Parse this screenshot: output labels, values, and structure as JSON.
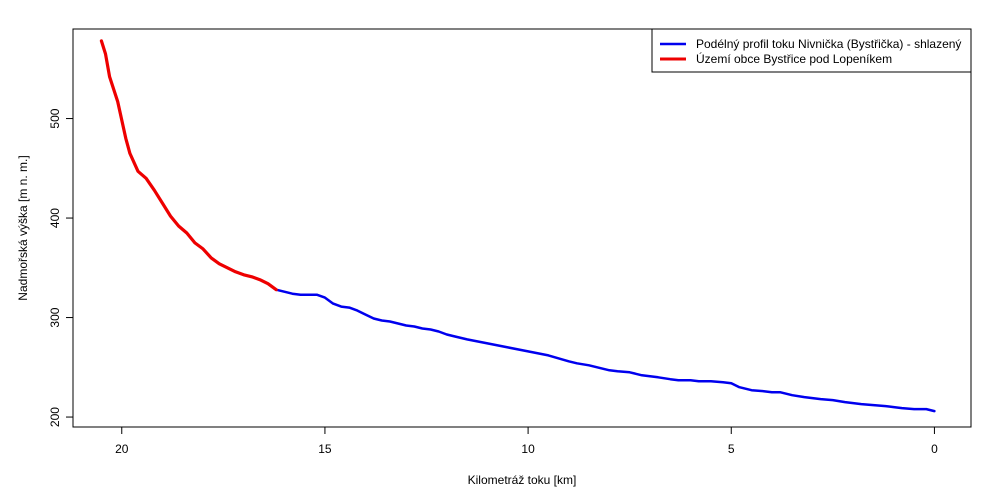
{
  "chart_data": {
    "type": "line",
    "xlabel": "Kilometráž toku [km]",
    "ylabel": "Nadmořská výška [m n. m.]",
    "xlim": [
      21.2,
      -0.9
    ],
    "ylim": [
      190,
      590
    ],
    "x_reversed": true,
    "xticks": [
      20,
      15,
      10,
      5,
      0
    ],
    "yticks": [
      200,
      300,
      400,
      500
    ],
    "grid": false,
    "legend_position": "top-right",
    "series": [
      {
        "name": "Podélný profil toku Nivnička (Bystřička) - shlazený",
        "color": "#0000ee",
        "x": [
          20.5,
          20.4,
          20.3,
          20.1,
          19.9,
          19.8,
          19.6,
          19.4,
          19.2,
          19.0,
          18.8,
          18.6,
          18.4,
          18.2,
          18.0,
          17.8,
          17.6,
          17.4,
          17.2,
          17.0,
          16.8,
          16.6,
          16.4,
          16.2,
          16.1,
          16.0,
          15.8,
          15.6,
          15.4,
          15.2,
          15.0,
          14.8,
          14.6,
          14.4,
          14.2,
          14.0,
          13.8,
          13.6,
          13.4,
          13.2,
          13.0,
          12.8,
          12.6,
          12.4,
          12.2,
          12.0,
          11.8,
          11.5,
          11.0,
          10.5,
          10.0,
          9.5,
          9.0,
          8.8,
          8.5,
          8.0,
          7.8,
          7.5,
          7.2,
          7.0,
          6.8,
          6.5,
          6.3,
          6.0,
          5.8,
          5.5,
          5.2,
          5.0,
          4.8,
          4.5,
          4.2,
          4.0,
          3.8,
          3.5,
          3.2,
          3.0,
          2.8,
          2.5,
          2.2,
          2.0,
          1.8,
          1.5,
          1.2,
          1.0,
          0.8,
          0.5,
          0.2,
          0.0
        ],
        "y": [
          578,
          565,
          542,
          517,
          480,
          465,
          447,
          440,
          428,
          415,
          402,
          392,
          385,
          375,
          369,
          360,
          354,
          350,
          346,
          343,
          341,
          338,
          334,
          328,
          327,
          326,
          324,
          323,
          323,
          323,
          320,
          314,
          311,
          310,
          307,
          303,
          299,
          297,
          296,
          294,
          292,
          291,
          289,
          288,
          286,
          283,
          281,
          278,
          274,
          270,
          266,
          262,
          256,
          254,
          252,
          247,
          246,
          245,
          242,
          241,
          240,
          238,
          237,
          237,
          236,
          236,
          235,
          234,
          230,
          227,
          226,
          225,
          225,
          222,
          220,
          219,
          218,
          217,
          215,
          214,
          213,
          212,
          211,
          210,
          209,
          208,
          208,
          206
        ]
      },
      {
        "name": "Území obce Bystřice pod Lopeníkem",
        "color": "#ee0000",
        "x": [
          20.5,
          20.4,
          20.3,
          20.1,
          19.9,
          19.8,
          19.6,
          19.4,
          19.2,
          19.0,
          18.8,
          18.6,
          18.4,
          18.2,
          18.0,
          17.8,
          17.6,
          17.4,
          17.2,
          17.0,
          16.8,
          16.6,
          16.4,
          16.2
        ],
        "y": [
          578,
          565,
          542,
          517,
          480,
          465,
          447,
          440,
          428,
          415,
          402,
          392,
          385,
          375,
          369,
          360,
          354,
          350,
          346,
          343,
          341,
          338,
          334,
          328
        ]
      }
    ]
  }
}
